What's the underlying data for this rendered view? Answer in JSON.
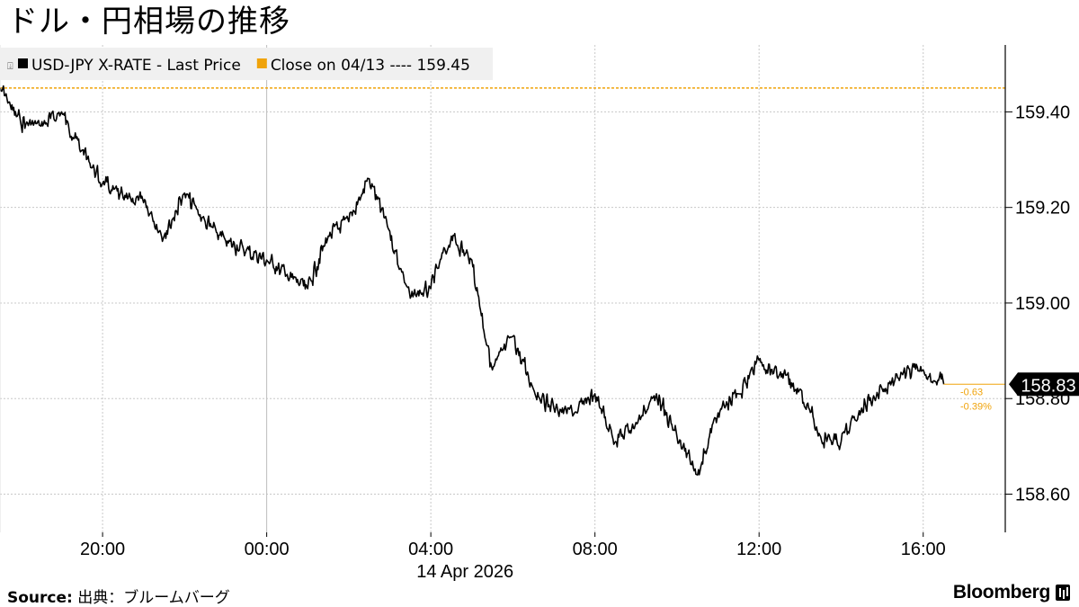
{
  "title": "ドル・円相場の推移",
  "source_label": "Source:",
  "source_text": " 出典：ブルームバーグ",
  "brand": "Bloomberg",
  "colors": {
    "series": "#000000",
    "reference": "#f0a30a",
    "grid": "#c8c8c8",
    "legend_bg": "#f0f0f0"
  },
  "chart_data": {
    "type": "line",
    "legend": [
      {
        "name": "USD-JPY X-RATE - Last Price",
        "color": "#000000"
      },
      {
        "name": "Close on 04/13 ---- 159.45",
        "color": "#f0a30a"
      }
    ],
    "x_ticks": [
      "20:00",
      "00:00",
      "04:00",
      "08:00",
      "12:00",
      "16:00"
    ],
    "x_sublabel": "14 Apr 2026",
    "y_ticks": [
      "158.60",
      "158.80",
      "159.00",
      "159.20",
      "159.40"
    ],
    "ylim": [
      158.52,
      159.54
    ],
    "xlim": [
      "13 Apr 2026 17:30",
      "14 Apr 2026 18:00"
    ],
    "grid": true,
    "reference_line": {
      "label": "Close on 04/13",
      "value": 159.45
    },
    "last_value_label": "158.83",
    "change_label": "-0.63",
    "change_pct_label": "-0.39%",
    "x": [
      "17:30",
      "18:00",
      "18:30",
      "19:00",
      "19:30",
      "20:00",
      "20:30",
      "21:00",
      "21:30",
      "22:00",
      "22:30",
      "23:00",
      "23:30",
      "00:00",
      "00:30",
      "01:00",
      "01:30",
      "02:00",
      "02:30",
      "03:00",
      "03:30",
      "04:00",
      "04:30",
      "05:00",
      "05:30",
      "06:00",
      "06:30",
      "07:00",
      "07:30",
      "08:00",
      "08:30",
      "09:00",
      "09:30",
      "10:00",
      "10:30",
      "11:00",
      "11:30",
      "12:00",
      "12:30",
      "13:00",
      "13:30",
      "14:00",
      "14:30",
      "15:00",
      "15:30",
      "16:00",
      "16:30"
    ],
    "values": [
      159.45,
      159.38,
      159.37,
      159.4,
      159.32,
      159.25,
      159.22,
      159.21,
      159.14,
      159.23,
      159.17,
      159.13,
      159.11,
      159.09,
      159.06,
      159.03,
      159.14,
      159.17,
      159.26,
      159.15,
      159.01,
      159.03,
      159.14,
      159.09,
      158.86,
      158.93,
      158.82,
      158.78,
      158.77,
      158.81,
      158.71,
      158.75,
      158.81,
      158.72,
      158.64,
      158.77,
      158.81,
      158.88,
      158.85,
      158.82,
      158.72,
      158.71,
      158.78,
      158.82,
      158.85,
      158.86,
      158.83
    ]
  }
}
